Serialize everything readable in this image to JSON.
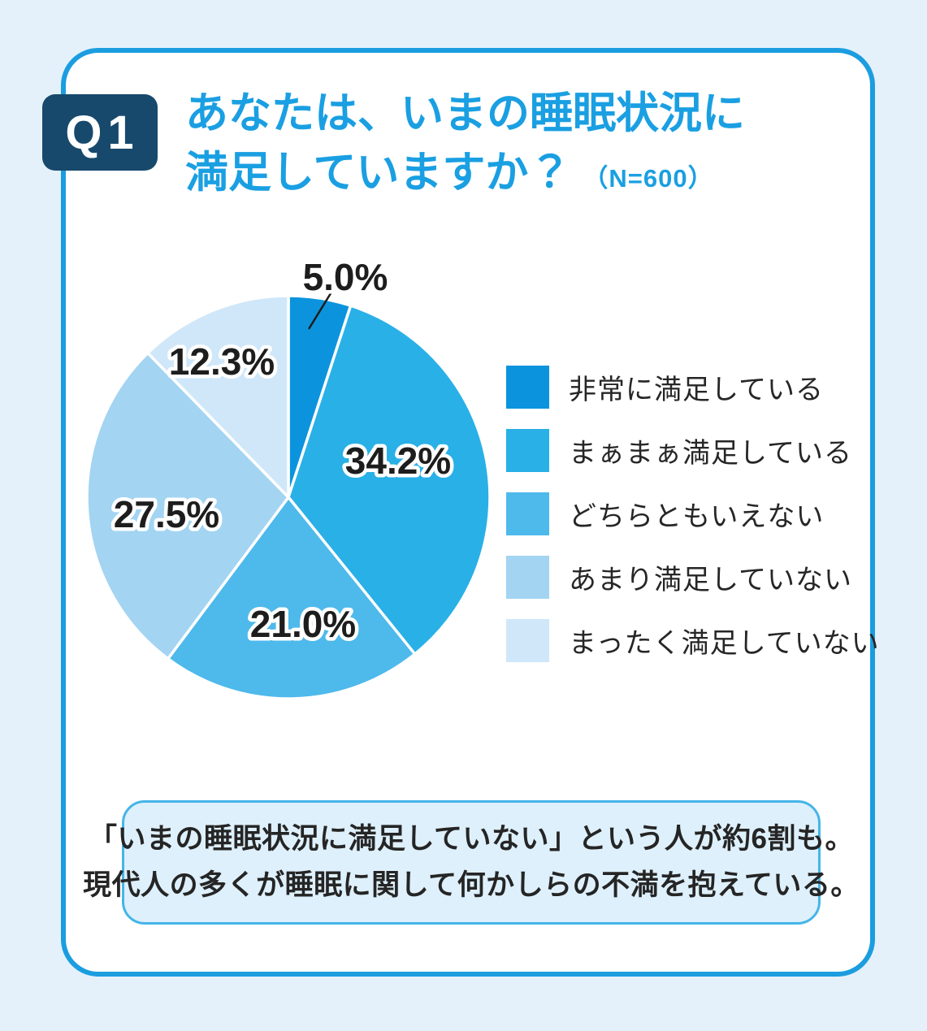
{
  "page": {
    "background_color": "#e4f1fb",
    "card_border_color": "#1b9de0"
  },
  "question": {
    "badge": "Q1",
    "badge_bg_color": "#17496c",
    "title_line1": "あなたは、いまの睡眠状況に",
    "title_line2": "満足していますか？",
    "sample_size_label": "（N=600）",
    "title_color": "#1a9fe2"
  },
  "chart_data": {
    "type": "pie",
    "title": "あなたは、いまの睡眠状況に満足していますか？",
    "sample_size": 600,
    "unit": "%",
    "start_angle_deg": 0,
    "direction": "clockwise",
    "legend_position": "right",
    "slices": [
      {
        "label": "非常に満足している",
        "value": 5.0,
        "pct_label": "5.0%",
        "color": "#0b94dd"
      },
      {
        "label": "まぁまぁ満足している",
        "value": 34.2,
        "pct_label": "34.2%",
        "color": "#29b0e7"
      },
      {
        "label": "どちらともいえない",
        "value": 21.0,
        "pct_label": "21.0%",
        "color": "#4eb9eb"
      },
      {
        "label": "あまり満足していない",
        "value": 27.5,
        "pct_label": "27.5%",
        "color": "#a3d4f2"
      },
      {
        "label": "まったく満足していない",
        "value": 12.3,
        "pct_label": "12.3%",
        "color": "#cfe7f9"
      }
    ]
  },
  "note": {
    "line1": "「いまの睡眠状況に満足していない」という人が約6割も。",
    "line2": "現代人の多くが睡眠に関して何かしらの不満を抱えている。"
  }
}
